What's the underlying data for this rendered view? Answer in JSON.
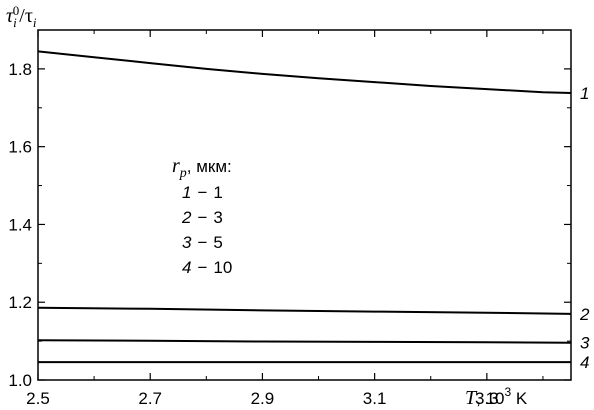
{
  "chart_data": {
    "type": "line",
    "ylabel": "τᵢ⁰/τᵢ",
    "xlabel": "T, 10³ K",
    "xlim": [
      2.5,
      3.45
    ],
    "ylim": [
      1.0,
      1.9
    ],
    "x_ticks": [
      2.5,
      2.7,
      2.9,
      3.1,
      3.3
    ],
    "x_tick_labels": [
      "2.5",
      "2.7",
      "2.9",
      "3.1",
      "3.3"
    ],
    "y_ticks": [
      1.0,
      1.2,
      1.4,
      1.6,
      1.8
    ],
    "y_tick_labels": [
      "1.0",
      "1.2",
      "1.4",
      "1.6",
      "1.8"
    ],
    "grid": false,
    "legend": {
      "title": "rp, мкм:",
      "entries": [
        {
          "curve": "1",
          "dash": "−",
          "value": "1"
        },
        {
          "curve": "2",
          "dash": "−",
          "value": "3"
        },
        {
          "curve": "3",
          "dash": "−",
          "value": "5"
        },
        {
          "curve": "4",
          "dash": "−",
          "value": "10"
        }
      ]
    },
    "series": [
      {
        "name": "1",
        "x": [
          2.5,
          2.6,
          2.7,
          2.8,
          2.9,
          3.0,
          3.1,
          3.2,
          3.3,
          3.4,
          3.45
        ],
        "y": [
          1.845,
          1.83,
          1.815,
          1.8,
          1.787,
          1.776,
          1.766,
          1.756,
          1.748,
          1.74,
          1.738
        ]
      },
      {
        "name": "2",
        "x": [
          2.5,
          2.7,
          2.9,
          3.1,
          3.3,
          3.45
        ],
        "y": [
          1.186,
          1.183,
          1.179,
          1.176,
          1.173,
          1.17
        ]
      },
      {
        "name": "3",
        "x": [
          2.5,
          2.7,
          2.9,
          3.1,
          3.3,
          3.45
        ],
        "y": [
          1.102,
          1.101,
          1.099,
          1.098,
          1.097,
          1.096
        ]
      },
      {
        "name": "4",
        "x": [
          2.5,
          2.7,
          2.9,
          3.1,
          3.3,
          3.45
        ],
        "y": [
          1.046,
          1.046,
          1.046,
          1.046,
          1.046,
          1.046
        ]
      }
    ],
    "colors": {
      "line": "#000000",
      "frame": "#000000"
    }
  }
}
